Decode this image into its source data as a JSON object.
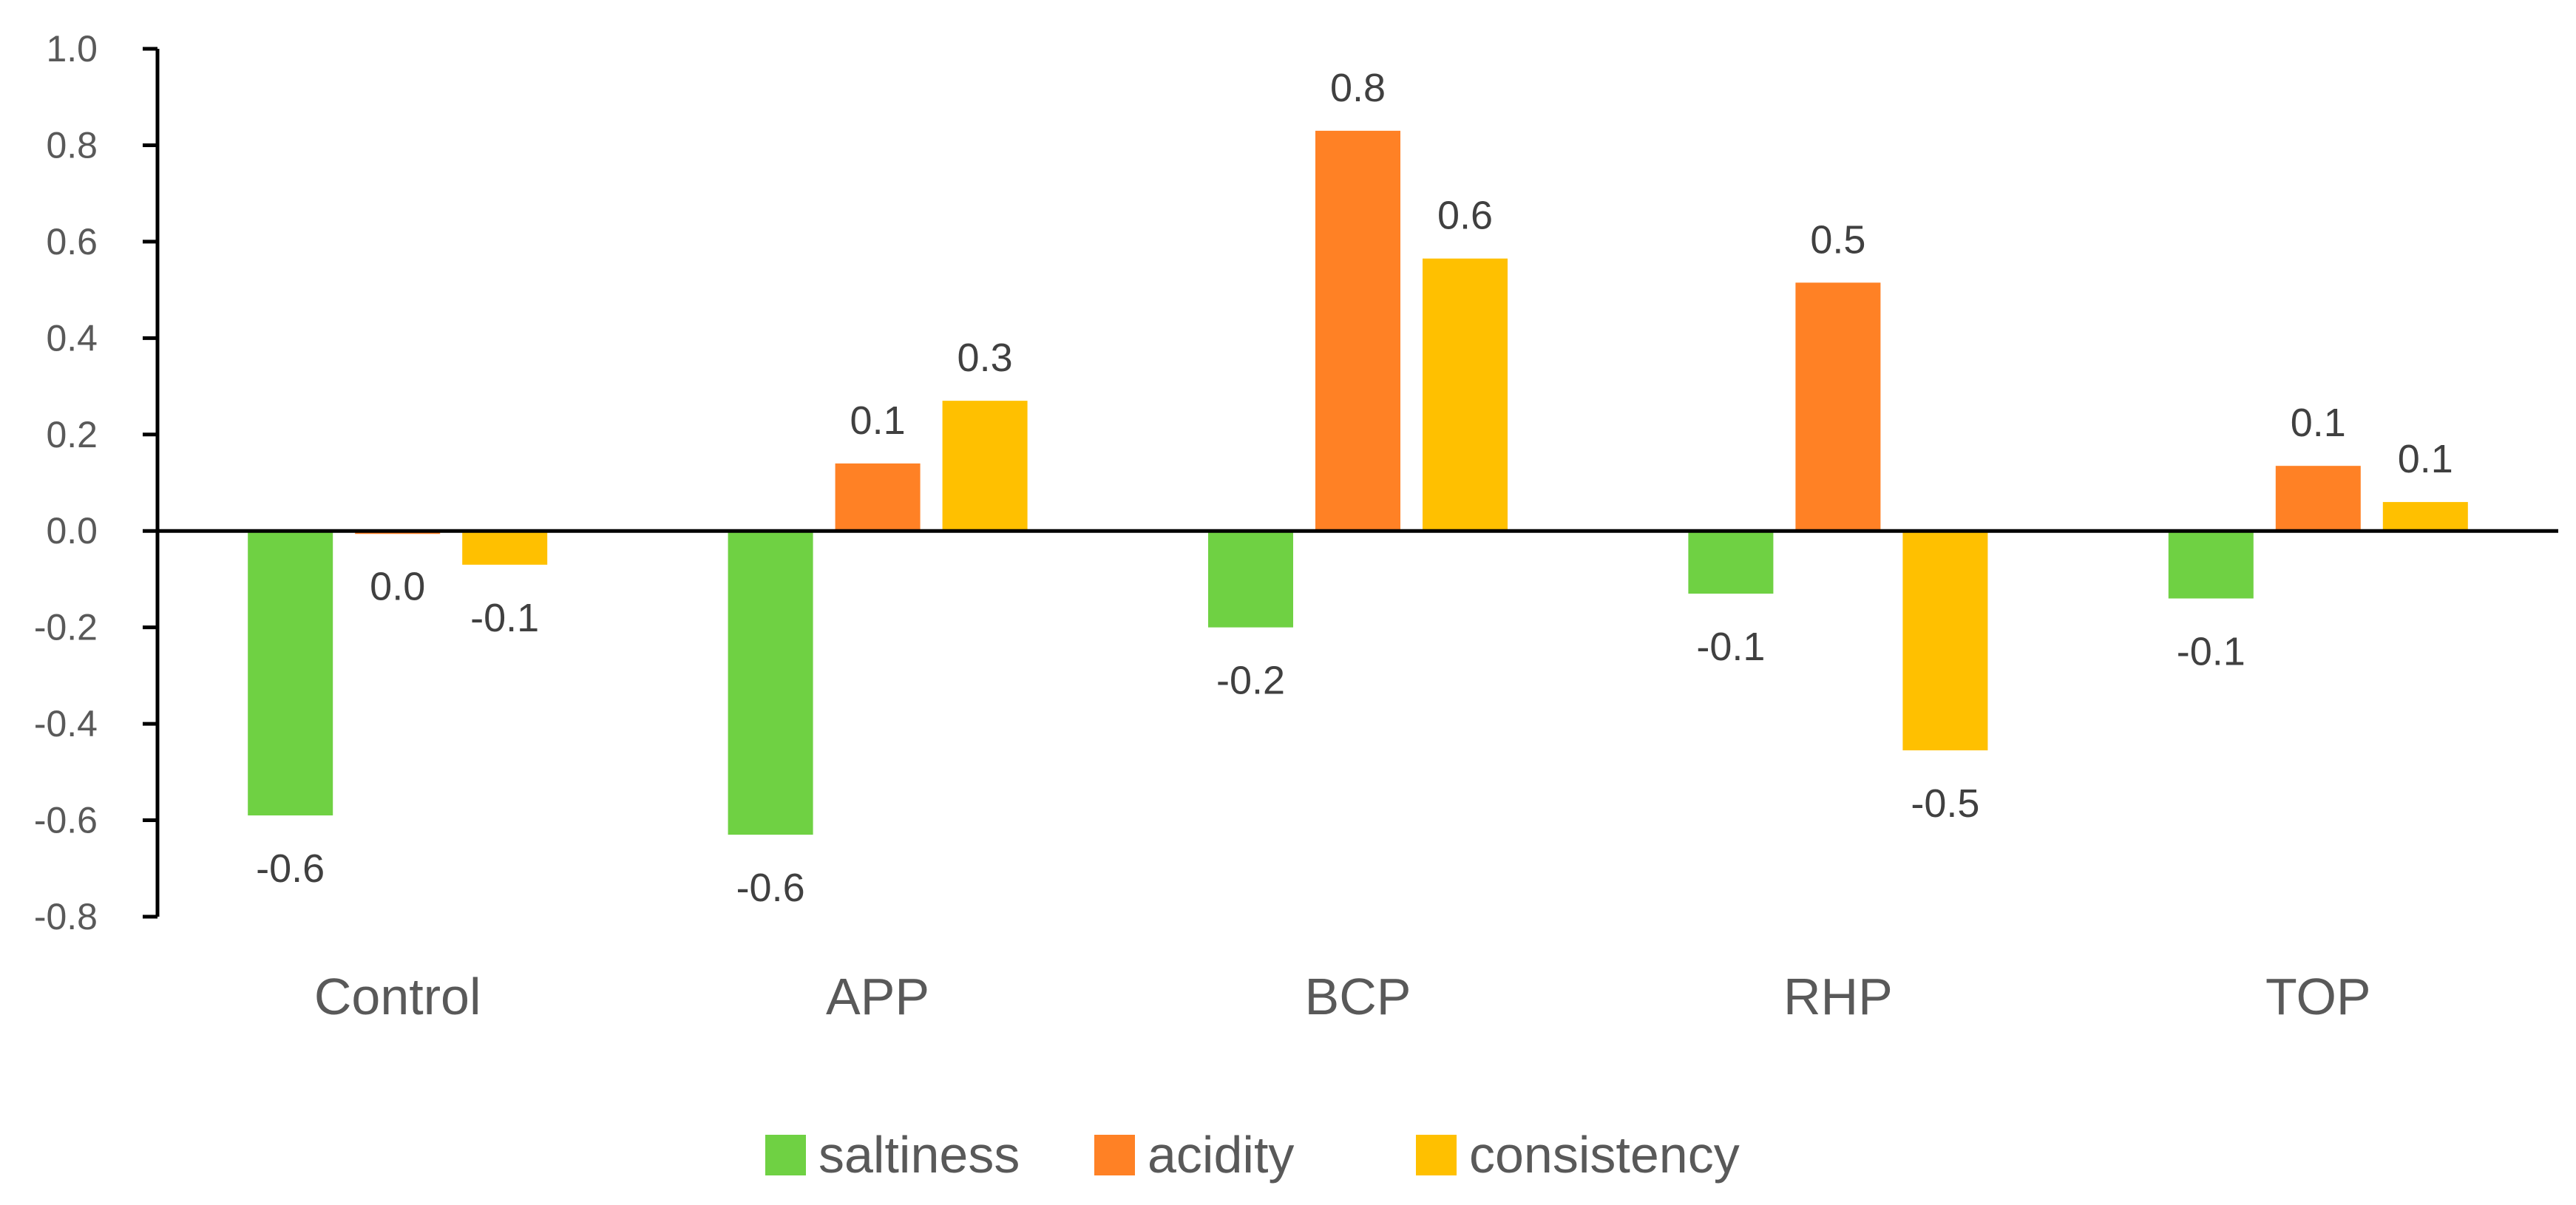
{
  "chart_data": {
    "type": "bar",
    "title": "",
    "xlabel": "",
    "ylabel": "",
    "ylim": [
      -0.8,
      1.0
    ],
    "ytick_step": 0.2,
    "yticks": [
      "1.0",
      "0.8",
      "0.6",
      "0.4",
      "0.2",
      "0.0",
      "-0.2",
      "-0.4",
      "-0.6",
      "-0.8"
    ],
    "grid": false,
    "legend_position": "bottom",
    "categories": [
      "Control",
      "APP",
      "BCP",
      "RHP",
      "TOP"
    ],
    "series": [
      {
        "name": "saltiness",
        "color": "#6FD143",
        "values": [
          -0.59,
          -0.63,
          -0.2,
          -0.13,
          -0.14
        ],
        "labels": [
          "-0.6",
          "-0.6",
          "-0.2",
          "-0.1",
          "-0.1"
        ]
      },
      {
        "name": "acidity",
        "color": "#FF8125",
        "values": [
          -0.005,
          0.14,
          0.83,
          0.515,
          0.135
        ],
        "labels": [
          "0.0",
          "0.1",
          "0.8",
          "0.5",
          "0.1"
        ]
      },
      {
        "name": "consistency",
        "color": "#FFC000",
        "values": [
          -0.07,
          0.27,
          0.565,
          -0.455,
          0.06
        ],
        "labels": [
          "-0.1",
          "0.3",
          "0.6",
          "-0.5",
          "0.1"
        ]
      }
    ]
  }
}
